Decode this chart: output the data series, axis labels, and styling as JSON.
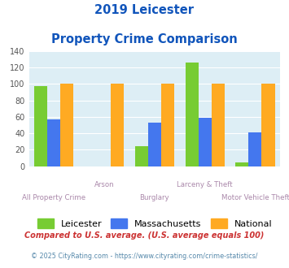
{
  "title_line1": "2019 Leicester",
  "title_line2": "Property Crime Comparison",
  "categories": [
    "All Property Crime",
    "Arson",
    "Burglary",
    "Larceny & Theft",
    "Motor Vehicle Theft"
  ],
  "leicester": [
    97,
    0,
    24,
    126,
    5
  ],
  "massachusetts": [
    57,
    0,
    53,
    59,
    41
  ],
  "national": [
    100,
    100,
    100,
    100,
    100
  ],
  "leicester_color": "#77cc33",
  "massachusetts_color": "#4477ee",
  "national_color": "#ffaa22",
  "bg_color": "#ddeef5",
  "title_color": "#1155bb",
  "xlabel_color": "#aa88aa",
  "ylabel_max": 140,
  "ylabel_step": 20,
  "legend_labels": [
    "Leicester",
    "Massachusetts",
    "National"
  ],
  "footnote1": "Compared to U.S. average. (U.S. average equals 100)",
  "footnote2": "© 2025 CityRating.com - https://www.cityrating.com/crime-statistics/",
  "footnote1_color": "#cc3333",
  "footnote2_color": "#5588aa",
  "row1_cats": [
    "Arson",
    "Larceny & Theft"
  ],
  "row2_cats": [
    "All Property Crime",
    "Burglary",
    "Motor Vehicle Theft"
  ]
}
